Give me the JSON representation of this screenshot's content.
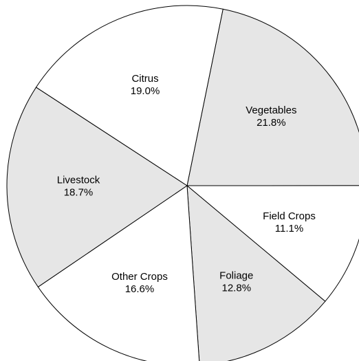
{
  "chart_data": {
    "type": "pie",
    "categories": [
      "Vegetables",
      "Field Crops",
      "Foliage",
      "Other Crops",
      "Livestock",
      "Citrus"
    ],
    "values": [
      21.8,
      11.1,
      12.8,
      16.6,
      18.7,
      19.0
    ],
    "value_labels": [
      "21.8%",
      "11.1%",
      "12.8%",
      "16.6%",
      "18.7%",
      "19.0%"
    ],
    "colors": [
      "#e6e6e6",
      "#ffffff",
      "#e6e6e6",
      "#ffffff",
      "#e6e6e6",
      "#ffffff"
    ]
  }
}
